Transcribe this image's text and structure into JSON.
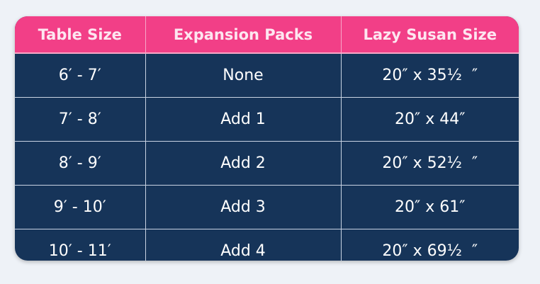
{
  "colors": {
    "header_bg": "#f23f87",
    "body_bg": "#163459",
    "text": "#ffffff"
  },
  "headers": [
    "Table Size",
    "Expansion Packs",
    "Lazy Susan Size"
  ],
  "rows": [
    [
      "6′ - 7′",
      "None",
      "20″ x 35½  ″"
    ],
    [
      "7′ - 8′",
      "Add 1",
      "20″ x 44″"
    ],
    [
      "8′ - 9′",
      "Add 2",
      "20″ x 52½  ″"
    ],
    [
      "9′ - 10′",
      "Add 3",
      "20″ x 61″"
    ],
    [
      "10′ - 11′",
      "Add 4",
      "20″ x 69½  ″"
    ]
  ]
}
